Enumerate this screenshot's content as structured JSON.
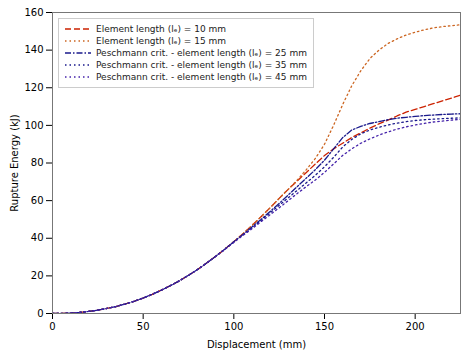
{
  "chart_data": {
    "type": "line",
    "title": "",
    "xlabel": "Displacement (mm)",
    "ylabel": "Rupture Energy (kJ)",
    "xlim": [
      0,
      225
    ],
    "ylim": [
      0,
      160
    ],
    "xticks": [
      0,
      50,
      100,
      150,
      200
    ],
    "yticks": [
      0,
      20,
      40,
      60,
      80,
      100,
      120,
      140,
      160
    ],
    "grid": false,
    "legend": "upper-left",
    "x": [
      0,
      5,
      10,
      15,
      20,
      25,
      30,
      35,
      40,
      45,
      50,
      55,
      60,
      65,
      70,
      75,
      80,
      85,
      90,
      95,
      100,
      105,
      110,
      115,
      120,
      125,
      130,
      135,
      140,
      145,
      150,
      155,
      160,
      165,
      170,
      175,
      180,
      185,
      190,
      195,
      200,
      205,
      210,
      215,
      220,
      225
    ],
    "series": [
      {
        "name": "Element length (lₑ) = 10 mm",
        "color": "#cc2200",
        "line_style": "dashed",
        "values": [
          0,
          0.06,
          0.25,
          0.6,
          1.1,
          1.8,
          2.7,
          3.7,
          5.0,
          6.5,
          8.2,
          10.2,
          12.4,
          14.8,
          17.4,
          20.3,
          23.4,
          26.8,
          30.4,
          34.2,
          38.2,
          42.4,
          46.8,
          51.4,
          56.2,
          61.2,
          66.0,
          70.5,
          75.0,
          79.5,
          84.0,
          87.5,
          90.5,
          93.5,
          96.0,
          98.5,
          100.8,
          102.8,
          105.0,
          107.0,
          108.5,
          110.0,
          111.5,
          113.0,
          114.5,
          116.0
        ]
      },
      {
        "name": "Element length (lₑ) = 15 mm",
        "color": "#cc6622",
        "line_style": "dotted",
        "values": [
          0,
          0.06,
          0.25,
          0.6,
          1.1,
          1.8,
          2.7,
          3.7,
          5.0,
          6.5,
          8.2,
          10.2,
          12.4,
          14.8,
          17.4,
          20.3,
          23.4,
          26.8,
          30.4,
          34.2,
          38.2,
          42.4,
          46.8,
          51.4,
          56.2,
          61.2,
          66.0,
          71.0,
          76.5,
          82.5,
          90.0,
          100.0,
          111.0,
          121.0,
          129.0,
          135.5,
          140.0,
          143.5,
          146.0,
          148.0,
          149.5,
          150.8,
          151.8,
          152.5,
          153.0,
          153.5
        ]
      },
      {
        "name": "Peschmann crit. - element length (lₑ) = 25 mm",
        "color": "#1a1a8c",
        "line_style": "dashdot",
        "values": [
          0,
          0.06,
          0.25,
          0.6,
          1.1,
          1.8,
          2.7,
          3.7,
          5.0,
          6.5,
          8.2,
          10.2,
          12.4,
          14.8,
          17.4,
          20.3,
          23.4,
          26.8,
          30.4,
          34.2,
          38.2,
          42.0,
          46.0,
          50.0,
          54.2,
          58.5,
          63.0,
          67.5,
          72.0,
          76.5,
          81.5,
          87.5,
          93.5,
          97.5,
          99.5,
          101.0,
          102.0,
          103.0,
          103.8,
          104.3,
          104.8,
          105.2,
          105.5,
          105.8,
          106.0,
          106.2
        ]
      },
      {
        "name": "Peschmann crit. - element length (lₑ) = 35 mm",
        "color": "#1a1a8c",
        "line_style": "dotted",
        "values": [
          0,
          0.06,
          0.25,
          0.6,
          1.1,
          1.8,
          2.7,
          3.7,
          5.0,
          6.5,
          8.2,
          10.2,
          12.4,
          14.8,
          17.4,
          20.3,
          23.4,
          26.8,
          30.4,
          34.2,
          38.0,
          41.8,
          45.5,
          49.5,
          53.5,
          57.5,
          61.5,
          65.5,
          69.5,
          73.5,
          78.0,
          83.0,
          88.5,
          92.5,
          95.5,
          97.5,
          99.0,
          100.2,
          101.2,
          102.0,
          102.6,
          103.0,
          103.3,
          103.6,
          103.8,
          104.0
        ]
      },
      {
        "name": "Peschmann crit. - element length (lₑ) = 45 mm",
        "color": "#4422aa",
        "line_style": "dotted",
        "values": [
          0,
          0.06,
          0.25,
          0.6,
          1.1,
          1.8,
          2.7,
          3.7,
          5.0,
          6.5,
          8.2,
          10.2,
          12.4,
          14.8,
          17.4,
          20.3,
          23.4,
          26.8,
          30.4,
          34.0,
          37.8,
          41.5,
          45.0,
          48.8,
          52.5,
          56.2,
          60.0,
          63.8,
          67.5,
          71.0,
          75.0,
          79.5,
          84.0,
          87.5,
          90.5,
          92.8,
          94.8,
          96.5,
          98.0,
          99.2,
          100.2,
          101.0,
          101.8,
          102.3,
          102.8,
          103.2
        ]
      }
    ]
  }
}
